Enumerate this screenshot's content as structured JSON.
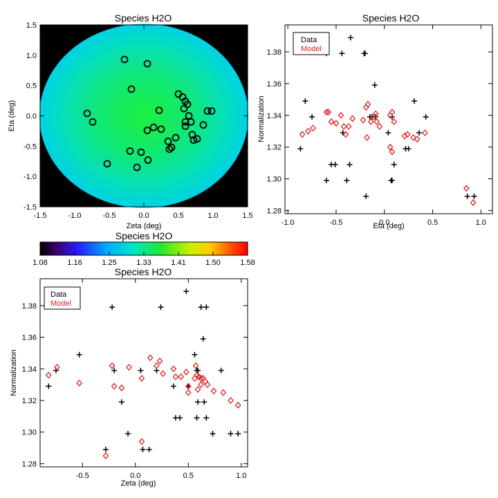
{
  "colors": {
    "data": "#000000",
    "model": "#e02020",
    "frame": "#000000",
    "offdisk": "#000000"
  },
  "chart_data": [
    {
      "type": "heatmap",
      "id": "map",
      "title": "Species H2O",
      "xlabel": "Zeta (deg)",
      "ylabel": "Eta (deg)",
      "xlim": [
        -1.5,
        1.5
      ],
      "ylim": [
        -1.5,
        1.5
      ],
      "xticks": [
        "-1.5",
        "-1.0",
        "-0.5",
        "0.0",
        "0.5",
        "1.0",
        "1.5"
      ],
      "yticks": [
        "-1.5",
        "-1.0",
        "-0.5",
        "0.0",
        "0.5",
        "1.0",
        "1.5"
      ],
      "background": "black outside disk",
      "value_at_center": 1.35,
      "value_at_edge": 1.27,
      "points": [
        {
          "x": -0.28,
          "y": 0.93
        },
        {
          "x": 0.05,
          "y": 0.86
        },
        {
          "x": -0.18,
          "y": 0.44
        },
        {
          "x": 0.5,
          "y": 0.36
        },
        {
          "x": 0.56,
          "y": 0.31
        },
        {
          "x": 0.6,
          "y": 0.24
        },
        {
          "x": 0.63,
          "y": 0.19
        },
        {
          "x": 0.58,
          "y": 0.12
        },
        {
          "x": 0.22,
          "y": 0.09
        },
        {
          "x": 0.92,
          "y": 0.08
        },
        {
          "x": 0.98,
          "y": 0.08
        },
        {
          "x": -0.82,
          "y": 0.04
        },
        {
          "x": 0.65,
          "y": 0.0
        },
        {
          "x": -0.74,
          "y": -0.1
        },
        {
          "x": 0.6,
          "y": -0.1
        },
        {
          "x": 0.6,
          "y": -0.17
        },
        {
          "x": 0.68,
          "y": -0.1
        },
        {
          "x": 0.86,
          "y": -0.15
        },
        {
          "x": 0.14,
          "y": -0.19
        },
        {
          "x": 0.25,
          "y": -0.22
        },
        {
          "x": 0.05,
          "y": -0.24
        },
        {
          "x": 0.7,
          "y": -0.31
        },
        {
          "x": 0.77,
          "y": -0.38
        },
        {
          "x": 0.46,
          "y": -0.36
        },
        {
          "x": 0.72,
          "y": -0.4
        },
        {
          "x": 0.35,
          "y": -0.42
        },
        {
          "x": 0.4,
          "y": -0.52
        },
        {
          "x": 0.37,
          "y": -0.55
        },
        {
          "x": -0.2,
          "y": -0.58
        },
        {
          "x": -0.04,
          "y": -0.6
        },
        {
          "x": 0.06,
          "y": -0.73
        },
        {
          "x": -0.53,
          "y": -0.79
        },
        {
          "x": -0.1,
          "y": -0.85
        }
      ]
    },
    {
      "type": "scatter",
      "id": "eta",
      "title": "Species H2O",
      "xlabel": "Eta (deg)",
      "ylabel": "Normalization",
      "xlim": [
        -1.03,
        1.12
      ],
      "ylim": [
        1.278,
        1.397
      ],
      "xticks": [
        -1.0,
        -0.5,
        0.0,
        0.5,
        1.0
      ],
      "xtick_labels": [
        "-1.0",
        "-0.5",
        "0.0",
        "0.5",
        "1.0"
      ],
      "yticks": [
        1.28,
        1.3,
        1.32,
        1.34,
        1.36,
        1.38
      ],
      "ytick_labels": [
        "1.28",
        "1.30",
        "1.32",
        "1.34",
        "1.36",
        "1.38"
      ],
      "legend": {
        "position": "top-left",
        "entries": [
          "Data",
          "Model"
        ]
      },
      "series": [
        {
          "name": "Data",
          "marker": "plus",
          "points": [
            [
              -0.35,
              1.389
            ],
            [
              -0.6,
              1.379
            ],
            [
              -0.44,
              1.379
            ],
            [
              -0.21,
              1.379
            ],
            [
              -0.2,
              1.379
            ],
            [
              -0.1,
              1.359
            ],
            [
              -0.82,
              1.349
            ],
            [
              0.31,
              1.349
            ],
            [
              -0.75,
              1.339
            ],
            [
              -0.15,
              1.339
            ],
            [
              -0.09,
              1.339
            ],
            [
              0.08,
              1.339
            ],
            [
              -0.13,
              1.339
            ],
            [
              0.43,
              1.339
            ],
            [
              0.04,
              1.329
            ],
            [
              -0.43,
              1.329
            ],
            [
              0.36,
              1.329
            ],
            [
              -0.87,
              1.319
            ],
            [
              0.22,
              1.319
            ],
            [
              0.25,
              1.319
            ],
            [
              -0.55,
              1.309
            ],
            [
              -0.51,
              1.309
            ],
            [
              -0.36,
              1.309
            ],
            [
              0.1,
              1.309
            ],
            [
              -0.6,
              1.299
            ],
            [
              -0.39,
              1.299
            ],
            [
              0.07,
              1.299
            ],
            [
              0.08,
              1.299
            ],
            [
              -0.19,
              1.289
            ],
            [
              0.86,
              1.289
            ],
            [
              0.93,
              1.289
            ]
          ]
        },
        {
          "name": "Model",
          "marker": "diamond",
          "points": [
            [
              -0.85,
              1.328
            ],
            [
              -0.79,
              1.33
            ],
            [
              -0.74,
              1.332
            ],
            [
              -0.6,
              1.342
            ],
            [
              -0.58,
              1.342
            ],
            [
              -0.55,
              1.336
            ],
            [
              -0.5,
              1.335
            ],
            [
              -0.45,
              1.34
            ],
            [
              -0.42,
              1.333
            ],
            [
              -0.4,
              1.328
            ],
            [
              -0.37,
              1.333
            ],
            [
              -0.33,
              1.338
            ],
            [
              -0.22,
              1.337
            ],
            [
              -0.19,
              1.345
            ],
            [
              -0.17,
              1.347
            ],
            [
              -0.14,
              1.336
            ],
            [
              -0.11,
              1.339
            ],
            [
              -0.09,
              1.341
            ],
            [
              -0.08,
              1.336
            ],
            [
              -0.05,
              1.333
            ],
            [
              -0.18,
              1.326
            ],
            [
              0.06,
              1.34
            ],
            [
              0.08,
              1.342
            ],
            [
              0.1,
              1.336
            ],
            [
              0.06,
              1.32
            ],
            [
              0.08,
              1.317
            ],
            [
              0.21,
              1.327
            ],
            [
              0.24,
              1.328
            ],
            [
              0.3,
              1.326
            ],
            [
              0.34,
              1.325
            ],
            [
              0.42,
              1.329
            ],
            [
              0.85,
              1.294
            ],
            [
              0.92,
              1.285
            ]
          ]
        }
      ]
    },
    {
      "type": "scatter",
      "id": "zeta",
      "title": "Species H2O",
      "xlabel": "Zeta (deg)",
      "ylabel": "Normalization",
      "xlim": [
        -0.9,
        1.06
      ],
      "ylim": [
        1.278,
        1.397
      ],
      "xticks": [
        -0.5,
        0.0,
        0.5,
        1.0
      ],
      "xtick_labels": [
        "-0.5",
        "0.0",
        "0.5",
        "1.0"
      ],
      "yticks": [
        1.28,
        1.3,
        1.32,
        1.34,
        1.36,
        1.38
      ],
      "ytick_labels": [
        "1.28",
        "1.30",
        "1.32",
        "1.34",
        "1.36",
        "1.38"
      ],
      "legend": {
        "position": "top-left",
        "entries": [
          "Data",
          "Model"
        ]
      },
      "series": [
        {
          "name": "Data",
          "marker": "plus",
          "points": [
            [
              0.48,
              1.389
            ],
            [
              -0.22,
              1.379
            ],
            [
              0.24,
              1.379
            ],
            [
              0.62,
              1.379
            ],
            [
              0.67,
              1.379
            ],
            [
              0.64,
              1.359
            ],
            [
              -0.53,
              1.349
            ],
            [
              0.56,
              1.349
            ],
            [
              -0.75,
              1.339
            ],
            [
              -0.2,
              1.339
            ],
            [
              0.05,
              1.339
            ],
            [
              0.2,
              1.339
            ],
            [
              0.58,
              1.339
            ],
            [
              0.59,
              1.339
            ],
            [
              0.81,
              1.339
            ],
            [
              -0.82,
              1.329
            ],
            [
              0.36,
              1.329
            ],
            [
              0.5,
              1.329
            ],
            [
              -0.13,
              1.319
            ],
            [
              0.59,
              1.319
            ],
            [
              0.65,
              1.319
            ],
            [
              0.38,
              1.309
            ],
            [
              0.42,
              1.309
            ],
            [
              0.58,
              1.309
            ],
            [
              0.67,
              1.309
            ],
            [
              -0.07,
              1.299
            ],
            [
              0.73,
              1.299
            ],
            [
              0.9,
              1.299
            ],
            [
              0.97,
              1.299
            ],
            [
              -0.28,
              1.289
            ],
            [
              0.07,
              1.289
            ],
            [
              0.13,
              1.289
            ]
          ]
        },
        {
          "name": "Model",
          "marker": "diamond",
          "points": [
            [
              -0.82,
              1.336
            ],
            [
              -0.74,
              1.341
            ],
            [
              -0.53,
              1.331
            ],
            [
              -0.22,
              1.342
            ],
            [
              -0.2,
              1.329
            ],
            [
              -0.13,
              1.328
            ],
            [
              -0.06,
              1.341
            ],
            [
              0.06,
              1.334
            ],
            [
              0.06,
              1.294
            ],
            [
              0.14,
              1.347
            ],
            [
              0.2,
              1.342
            ],
            [
              0.23,
              1.345
            ],
            [
              0.26,
              1.337
            ],
            [
              0.36,
              1.34
            ],
            [
              0.38,
              1.335
            ],
            [
              0.43,
              1.335
            ],
            [
              0.48,
              1.338
            ],
            [
              0.5,
              1.329
            ],
            [
              0.5,
              1.325
            ],
            [
              0.56,
              1.334
            ],
            [
              0.57,
              1.342
            ],
            [
              0.58,
              1.336
            ],
            [
              0.59,
              1.327
            ],
            [
              0.6,
              1.335
            ],
            [
              0.62,
              1.33
            ],
            [
              0.62,
              1.334
            ],
            [
              0.64,
              1.334
            ],
            [
              0.66,
              1.332
            ],
            [
              0.68,
              1.33
            ],
            [
              0.74,
              1.326
            ],
            [
              0.83,
              1.325
            ],
            [
              0.9,
              1.32
            ],
            [
              0.97,
              1.317
            ],
            [
              -0.28,
              1.285
            ]
          ]
        }
      ]
    },
    {
      "type": "colorbar",
      "id": "cbar",
      "title": "Species H2O",
      "range": [
        1.08,
        1.58
      ],
      "tick_labels": [
        "1.08",
        "1.16",
        "1.25",
        "1.33",
        "1.41",
        "1.50",
        "1.58"
      ]
    }
  ]
}
